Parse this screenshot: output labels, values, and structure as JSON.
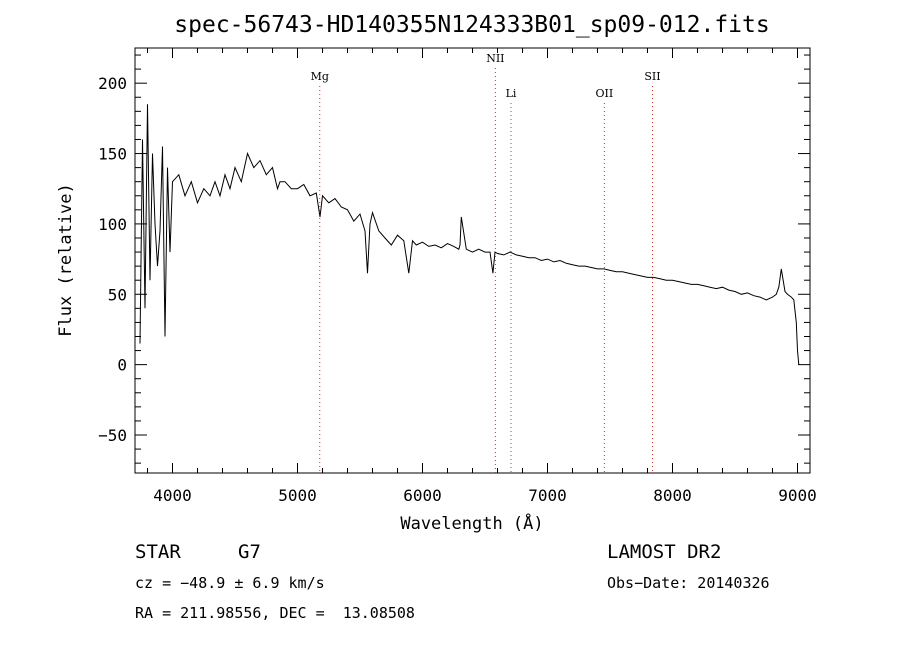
{
  "chart_data": {
    "type": "line",
    "title": "spec-56743-HD140355N124333B01_sp09-012.fits",
    "xlabel": "Wavelength (Å)",
    "ylabel": "Flux (relative)",
    "xlim": [
      3700,
      9100
    ],
    "ylim": [
      -77,
      225
    ],
    "x_ticks": [
      4000,
      5000,
      6000,
      7000,
      8000,
      9000
    ],
    "x_tick_labels": [
      "4000",
      "5000",
      "6000",
      "7000",
      "8000",
      "9000"
    ],
    "y_ticks": [
      -50,
      0,
      50,
      100,
      150,
      200
    ],
    "y_tick_labels": [
      "−50",
      "0",
      "50",
      "100",
      "150",
      "200"
    ],
    "grid": false,
    "series": [
      {
        "x": [
          3740,
          3760,
          3780,
          3800,
          3820,
          3840,
          3860,
          3880,
          3900,
          3920,
          3940,
          3960,
          3980,
          4000,
          4050,
          4100,
          4150,
          4200,
          4250,
          4300,
          4340,
          4380,
          4420,
          4460,
          4500,
          4550,
          4600,
          4650,
          4700,
          4750,
          4800,
          4840,
          4860,
          4900,
          4950,
          5000,
          5050,
          5100,
          5150,
          5180,
          5200,
          5250,
          5300,
          5350,
          5400,
          5450,
          5500,
          5540,
          5560,
          5580,
          5600,
          5650,
          5700,
          5750,
          5800,
          5850,
          5890,
          5920,
          5950,
          6000,
          6050,
          6100,
          6150,
          6200,
          6250,
          6290,
          6300,
          6310,
          6350,
          6400,
          6450,
          6500,
          6540,
          6563,
          6580,
          6600,
          6650,
          6700,
          6750,
          6800,
          6850,
          6900,
          6950,
          7000,
          7050,
          7100,
          7150,
          7200,
          7250,
          7300,
          7350,
          7400,
          7450,
          7500,
          7550,
          7600,
          7650,
          7700,
          7750,
          7800,
          7850,
          7900,
          7950,
          8000,
          8050,
          8100,
          8150,
          8200,
          8250,
          8300,
          8350,
          8400,
          8450,
          8500,
          8550,
          8600,
          8650,
          8700,
          8750,
          8800,
          8830,
          8850,
          8870,
          8900,
          8920,
          8950,
          8970,
          8990,
          9000,
          9010
        ],
        "values": [
          15,
          160,
          40,
          185,
          60,
          150,
          100,
          70,
          95,
          155,
          20,
          140,
          80,
          130,
          135,
          120,
          130,
          115,
          125,
          120,
          130,
          120,
          135,
          125,
          140,
          130,
          150,
          140,
          145,
          135,
          140,
          125,
          130,
          130,
          125,
          125,
          128,
          120,
          122,
          105,
          120,
          115,
          118,
          112,
          110,
          102,
          107,
          95,
          65,
          100,
          108,
          95,
          90,
          85,
          92,
          88,
          65,
          88,
          85,
          87,
          84,
          85,
          83,
          86,
          84,
          82,
          85,
          105,
          82,
          80,
          82,
          80,
          80,
          65,
          80,
          79,
          78,
          80,
          78,
          77,
          76,
          76,
          74,
          75,
          73,
          74,
          72,
          71,
          70,
          70,
          69,
          68,
          68,
          67,
          66,
          66,
          65,
          64,
          63,
          62,
          62,
          61,
          60,
          60,
          59,
          58,
          57,
          57,
          56,
          55,
          54,
          55,
          53,
          52,
          50,
          51,
          49,
          48,
          46,
          48,
          50,
          55,
          68,
          52,
          50,
          48,
          46,
          30,
          10,
          0
        ],
        "color": "#000000"
      }
    ],
    "line_markers": [
      {
        "label": "Mg",
        "x": 5178,
        "label_level": "low"
      },
      {
        "label": "NII",
        "x": 6583,
        "label_level": "high"
      },
      {
        "label": "Li",
        "x": 6708,
        "label_level": "mid"
      },
      {
        "label": "OII",
        "x": 7455,
        "label_level": "mid"
      },
      {
        "label": "SII",
        "x": 7840,
        "label_level": "low"
      }
    ],
    "marker_color": "#c0392b"
  },
  "info": {
    "object_type": "STAR",
    "subclass": "G7",
    "survey": "LAMOST DR2",
    "cz": "cz = −48.9 ± 6.9 km/s",
    "obs_date": "Obs−Date: 20140326",
    "coords": "RA = 211.98556, DEC =  13.08508"
  }
}
